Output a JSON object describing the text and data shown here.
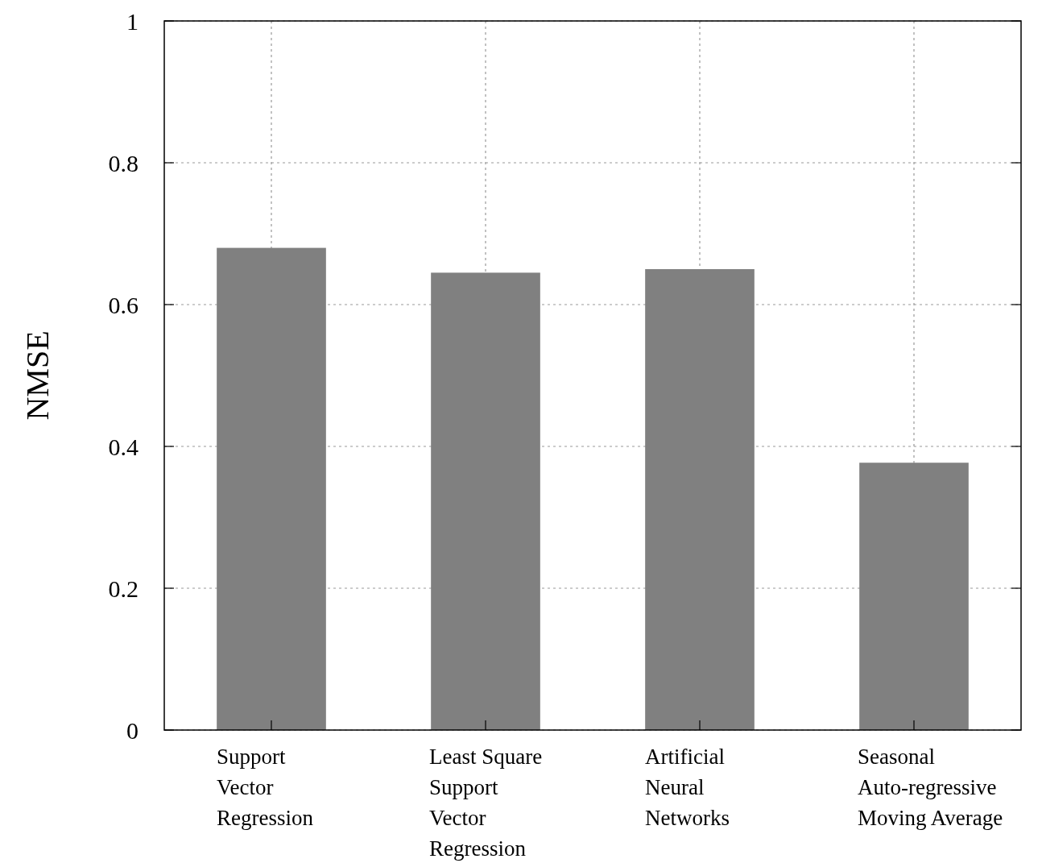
{
  "chart_data": {
    "type": "bar",
    "ylabel": "NMSE",
    "categories": [
      "Support\nVector\nRegression",
      "Least Square\nSupport\nVector\nRegression",
      "Artificial\nNeural\nNetworks",
      "Seasonal\nAuto-regressive\nMoving Average"
    ],
    "values": [
      0.68,
      0.645,
      0.65,
      0.377
    ],
    "color": "#808080",
    "ylim": [
      0,
      1
    ],
    "yticks": [
      0,
      0.2,
      0.4,
      0.6,
      0.8,
      1
    ],
    "grid": true
  }
}
